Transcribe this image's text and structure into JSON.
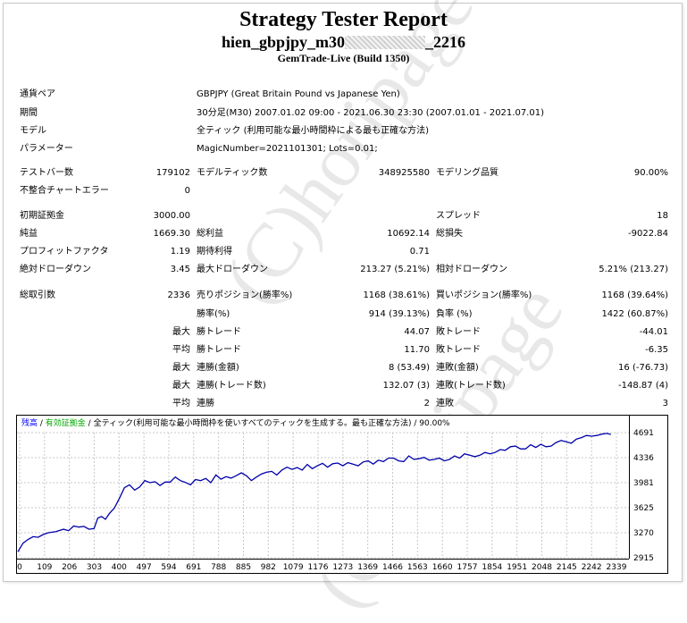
{
  "report": {
    "title": "Strategy Tester Report",
    "subtitle_start": "hien_gbpjpy_m30",
    "subtitle_end": "_2216",
    "build": "GemTrade-Live (Build 1350)"
  },
  "watermark": "(C)horipage",
  "info": [
    {
      "label": "通貨ペア",
      "value": "GBPJPY (Great Britain Pound vs Japanese Yen)"
    },
    {
      "label": "期間",
      "value": "30分足(M30) 2007.01.02 09:00 - 2021.06.30 23:30 (2007.01.01 - 2021.07.01)"
    },
    {
      "label": "モデル",
      "value": "全ティック (利用可能な最小時間枠による最も正確な方法)"
    },
    {
      "label": "パラメーター",
      "value": "MagicNumber=2021101301; Lots=0.01;"
    }
  ],
  "stats": {
    "bars_label": "テストバー数",
    "bars": "179102",
    "ticks_label": "モデルティック数",
    "ticks": "348925580",
    "quality_label": "モデリング品質",
    "quality": "90.00%",
    "mismatch_label": "不整合チャートエラー",
    "mismatch": "0",
    "deposit_label": "初期証拠金",
    "deposit": "3000.00",
    "spread_label": "スプレッド",
    "spread": "18",
    "net_label": "純益",
    "net": "1669.30",
    "gross_profit_label": "総利益",
    "gross_profit": "10692.14",
    "gross_loss_label": "総損失",
    "gross_loss": "-9022.84",
    "pf_label": "プロフィットファクタ",
    "pf": "1.19",
    "payoff_label": "期待利得",
    "payoff": "0.71",
    "abs_dd_label": "絶対ドローダウン",
    "abs_dd": "3.45",
    "max_dd_label": "最大ドローダウン",
    "max_dd": "213.27 (5.21%)",
    "rel_dd_label": "相対ドローダウン",
    "rel_dd": "5.21% (213.27)",
    "total_trades_label": "総取引数",
    "total_trades": "2336",
    "short_label": "売りポジション(勝率%)",
    "short": "1168 (38.61%)",
    "long_label": "買いポジション(勝率%)",
    "long": "1168 (39.64%)",
    "win_pct_label": "勝率(%)",
    "win_pct": "914 (39.13%)",
    "loss_pct_label": "負率 (%)",
    "loss_pct": "1422 (60.87%)",
    "max_label": "最大",
    "avg_label": "平均",
    "profit_trade_label": "勝トレード",
    "loss_trade_label": "敗トレード",
    "largest_profit": "44.07",
    "largest_loss": "-44.01",
    "avg_profit": "11.70",
    "avg_loss": "-6.35",
    "consec_wins_money_label": "連勝(金額)",
    "consec_wins_money": "8 (53.49)",
    "consec_losses_money_label": "連敗(金額)",
    "consec_losses_money": "16 (-76.73)",
    "consec_wins_trades_label": "連勝(トレード数)",
    "consec_wins_trades": "132.07 (3)",
    "consec_losses_trades_label": "連敗(トレード数)",
    "consec_losses_trades": "-148.87 (4)",
    "avg_wins_label": "連勝",
    "avg_wins": "2",
    "avg_losses_label": "連敗",
    "avg_losses": "3"
  },
  "chart_data": {
    "type": "line",
    "legend": {
      "balance": "残高",
      "equity": "有効証拠金",
      "model": "全ティック(利用可能な最小時間枠を使いすべてのティックを生成する。最も正確な方法)",
      "quality": "90.00%",
      "balance_color": "#0000ff",
      "equity_color": "#00aa00"
    },
    "x_ticks": [
      "0",
      "109",
      "206",
      "303",
      "400",
      "497",
      "594",
      "691",
      "788",
      "885",
      "982",
      "1079",
      "1176",
      "1273",
      "1369",
      "1466",
      "1563",
      "1660",
      "1757",
      "1854",
      "1951",
      "2048",
      "2145",
      "2242",
      "2339"
    ],
    "y_ticks": [
      "4691",
      "4336",
      "3981",
      "3625",
      "3270",
      "2915"
    ],
    "ylim": [
      2915,
      4691
    ],
    "xlim": [
      0,
      2400
    ],
    "line_color": "#0000aa",
    "series": [
      {
        "x": [
          0,
          20,
          40,
          60,
          80,
          100,
          120,
          150,
          180,
          200,
          220,
          240,
          260,
          280,
          300,
          315,
          330,
          345,
          360,
          380,
          400,
          420,
          440,
          460,
          480,
          500,
          520,
          540,
          560,
          580,
          600,
          620,
          640,
          660,
          680,
          700,
          720,
          740,
          760,
          780,
          800,
          820,
          840,
          860,
          880,
          900,
          920,
          940,
          960,
          980,
          1000,
          1020,
          1040,
          1060,
          1080,
          1100,
          1120,
          1140,
          1160,
          1180,
          1200,
          1220,
          1240,
          1260,
          1280,
          1300,
          1320,
          1340,
          1360,
          1380,
          1400,
          1420,
          1440,
          1460,
          1480,
          1500,
          1520,
          1540,
          1560,
          1580,
          1600,
          1620,
          1640,
          1660,
          1680,
          1700,
          1720,
          1740,
          1760,
          1780,
          1800,
          1820,
          1840,
          1860,
          1880,
          1900,
          1920,
          1940,
          1960,
          1980,
          2000,
          2020,
          2040,
          2060,
          2080,
          2100,
          2120,
          2140,
          2160,
          2180,
          2200,
          2220,
          2240,
          2260,
          2280,
          2300,
          2320,
          2336
        ],
        "y": [
          3000,
          3120,
          3175,
          3215,
          3205,
          3245,
          3270,
          3285,
          3320,
          3300,
          3365,
          3350,
          3360,
          3320,
          3330,
          3480,
          3500,
          3460,
          3540,
          3620,
          3760,
          3910,
          3950,
          3875,
          3920,
          4010,
          3980,
          3995,
          3940,
          3990,
          3990,
          4060,
          4010,
          3985,
          3950,
          4025,
          4010,
          4040,
          3980,
          4090,
          4030,
          4065,
          4045,
          4080,
          4120,
          4080,
          4010,
          4060,
          4105,
          4130,
          4140,
          4090,
          4160,
          4200,
          4170,
          4195,
          4160,
          4240,
          4180,
          4220,
          4255,
          4200,
          4250,
          4260,
          4220,
          4265,
          4245,
          4220,
          4275,
          4290,
          4245,
          4300,
          4280,
          4330,
          4330,
          4290,
          4280,
          4360,
          4310,
          4320,
          4340,
          4300,
          4310,
          4330,
          4290,
          4310,
          4360,
          4330,
          4390,
          4370,
          4350,
          4370,
          4410,
          4390,
          4410,
          4450,
          4440,
          4490,
          4500,
          4460,
          4460,
          4520,
          4480,
          4525,
          4490,
          4500,
          4550,
          4580,
          4560,
          4540,
          4600,
          4620,
          4650,
          4640,
          4650,
          4670,
          4680,
          4665
        ]
      }
    ]
  }
}
